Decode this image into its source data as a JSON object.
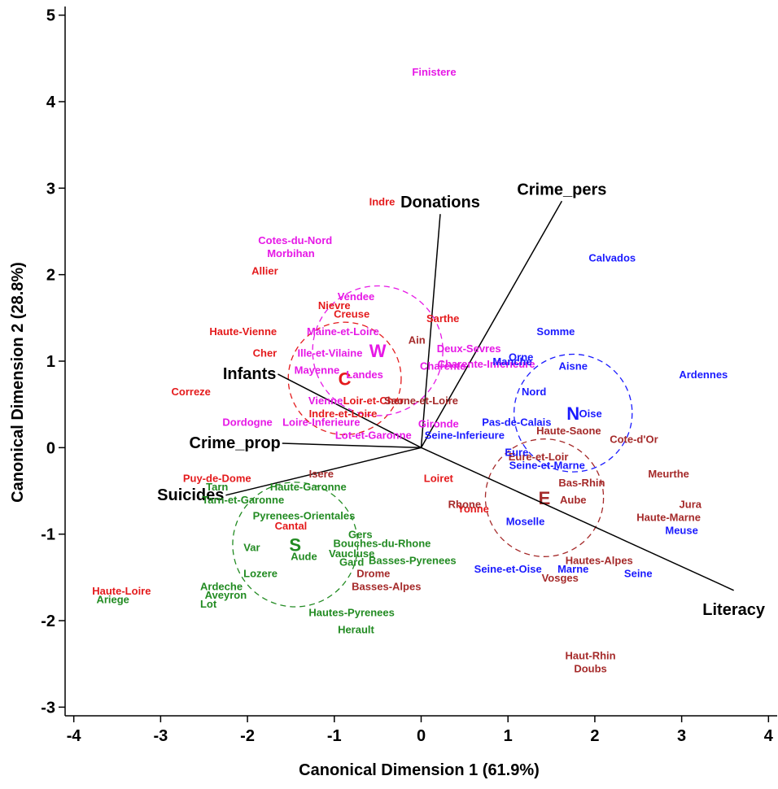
{
  "chart_data": {
    "type": "scatter",
    "title": "",
    "xlabel": "Canonical Dimension 1 (61.9%)",
    "ylabel": "Canonical Dimension 2 (28.8%)",
    "xlim": [
      -4.1,
      4.1
    ],
    "ylim": [
      -3.1,
      5.1
    ],
    "x_ticks": [
      -4,
      -3,
      -2,
      -1,
      0,
      1,
      2,
      3,
      4
    ],
    "y_ticks": [
      -3,
      -2,
      -1,
      0,
      1,
      2,
      3,
      4,
      5
    ],
    "grid": false,
    "legend": "none",
    "region_colors": {
      "C": "#e41a1c",
      "E": "#a52a2a",
      "N": "#1a1aff",
      "S": "#228b22",
      "W": "#e619e6"
    },
    "points": [
      {
        "label": "Finistere",
        "region": "W",
        "x": 0.15,
        "y": 4.35
      },
      {
        "label": "Cotes-du-Nord",
        "region": "W",
        "x": -1.45,
        "y": 2.4
      },
      {
        "label": "Morbihan",
        "region": "W",
        "x": -1.5,
        "y": 2.25
      },
      {
        "label": "Vendee",
        "region": "W",
        "x": -0.75,
        "y": 1.75
      },
      {
        "label": "Maine-et-Loire",
        "region": "W",
        "x": -0.9,
        "y": 1.35
      },
      {
        "label": "Ille-et-Vilaine",
        "region": "W",
        "x": -1.05,
        "y": 1.1
      },
      {
        "label": "Mayenne",
        "region": "W",
        "x": -1.2,
        "y": 0.9
      },
      {
        "label": "Landes",
        "region": "W",
        "x": -0.65,
        "y": 0.85
      },
      {
        "label": "Deux-Sevres",
        "region": "W",
        "x": 0.55,
        "y": 1.15
      },
      {
        "label": "Charente",
        "region": "W",
        "x": 0.25,
        "y": 0.95
      },
      {
        "label": "Charente-Inferieure",
        "region": "W",
        "x": 0.75,
        "y": 0.97
      },
      {
        "label": "Vienne",
        "region": "W",
        "x": -1.1,
        "y": 0.55
      },
      {
        "label": "Loire-Inferieure",
        "region": "W",
        "x": -1.15,
        "y": 0.3
      },
      {
        "label": "Dordogne",
        "region": "W",
        "x": -2.0,
        "y": 0.3
      },
      {
        "label": "Lot-et-Garonne",
        "region": "W",
        "x": -0.55,
        "y": 0.15
      },
      {
        "label": "Gironde",
        "region": "W",
        "x": 0.2,
        "y": 0.28
      },
      {
        "label": "Indre",
        "region": "C",
        "x": -0.45,
        "y": 2.85
      },
      {
        "label": "Allier",
        "region": "C",
        "x": -1.8,
        "y": 2.05
      },
      {
        "label": "Nievre",
        "region": "C",
        "x": -1.0,
        "y": 1.65
      },
      {
        "label": "Creuse",
        "region": "C",
        "x": -0.8,
        "y": 1.55
      },
      {
        "label": "Sarthe",
        "region": "C",
        "x": 0.25,
        "y": 1.5
      },
      {
        "label": "Haute-Vienne",
        "region": "C",
        "x": -2.05,
        "y": 1.35
      },
      {
        "label": "Cher",
        "region": "C",
        "x": -1.8,
        "y": 1.1
      },
      {
        "label": "Correze",
        "region": "C",
        "x": -2.65,
        "y": 0.65
      },
      {
        "label": "Loir-et-Cher",
        "region": "C",
        "x": -0.55,
        "y": 0.55
      },
      {
        "label": "Indre-et-Loire",
        "region": "C",
        "x": -0.9,
        "y": 0.4
      },
      {
        "label": "Loiret",
        "region": "C",
        "x": 0.2,
        "y": -0.35
      },
      {
        "label": "Yonne",
        "region": "C",
        "x": 0.6,
        "y": -0.7
      },
      {
        "label": "Puy-de-Dome",
        "region": "C",
        "x": -2.35,
        "y": -0.35
      },
      {
        "label": "Cantal",
        "region": "C",
        "x": -1.5,
        "y": -0.9
      },
      {
        "label": "Haute-Loire",
        "region": "C",
        "x": -3.45,
        "y": -1.65
      },
      {
        "label": "Saone-et-Loire",
        "region": "E",
        "x": 0.0,
        "y": 0.55
      },
      {
        "label": "Rhone",
        "region": "E",
        "x": 0.5,
        "y": -0.65
      },
      {
        "label": "Isere",
        "region": "E",
        "x": -1.15,
        "y": -0.3
      },
      {
        "label": "Ain",
        "region": "E",
        "x": -0.05,
        "y": 1.25
      },
      {
        "label": "Drome",
        "region": "E",
        "x": -0.55,
        "y": -1.45
      },
      {
        "label": "Basses-Alpes",
        "region": "E",
        "x": -0.4,
        "y": -1.6
      },
      {
        "label": "Haute-Saone",
        "region": "E",
        "x": 1.7,
        "y": 0.2
      },
      {
        "label": "Cote-d'Or",
        "region": "E",
        "x": 2.45,
        "y": 0.1
      },
      {
        "label": "Eure-et-Loir",
        "region": "E",
        "x": 1.35,
        "y": -0.1
      },
      {
        "label": "Bas-Rhin",
        "region": "E",
        "x": 1.85,
        "y": -0.4
      },
      {
        "label": "Aube",
        "region": "E",
        "x": 1.75,
        "y": -0.6
      },
      {
        "label": "Meurthe",
        "region": "E",
        "x": 2.85,
        "y": -0.3
      },
      {
        "label": "Jura",
        "region": "E",
        "x": 3.1,
        "y": -0.65
      },
      {
        "label": "Haute-Marne",
        "region": "E",
        "x": 2.85,
        "y": -0.8
      },
      {
        "label": "Hautes-Alpes",
        "region": "E",
        "x": 2.05,
        "y": -1.3
      },
      {
        "label": "Vosges",
        "region": "E",
        "x": 1.6,
        "y": -1.5
      },
      {
        "label": "Haut-Rhin",
        "region": "E",
        "x": 1.95,
        "y": -2.4
      },
      {
        "label": "Doubs",
        "region": "E",
        "x": 1.95,
        "y": -2.55
      },
      {
        "label": "Calvados",
        "region": "N",
        "x": 2.2,
        "y": 2.2
      },
      {
        "label": "Somme",
        "region": "N",
        "x": 1.55,
        "y": 1.35
      },
      {
        "label": "Orne",
        "region": "N",
        "x": 1.15,
        "y": 1.05
      },
      {
        "label": "Manche",
        "region": "N",
        "x": 1.05,
        "y": 1.0
      },
      {
        "label": "Aisne",
        "region": "N",
        "x": 1.75,
        "y": 0.95
      },
      {
        "label": "Ardennes",
        "region": "N",
        "x": 3.25,
        "y": 0.85
      },
      {
        "label": "Nord",
        "region": "N",
        "x": 1.3,
        "y": 0.65
      },
      {
        "label": "Oise",
        "region": "N",
        "x": 1.95,
        "y": 0.4
      },
      {
        "label": "Pas-de-Calais",
        "region": "N",
        "x": 1.1,
        "y": 0.3
      },
      {
        "label": "Seine-Inferieure",
        "region": "N",
        "x": 0.5,
        "y": 0.15
      },
      {
        "label": "Eure",
        "region": "N",
        "x": 1.1,
        "y": -0.05
      },
      {
        "label": "Seine-et-Marne",
        "region": "N",
        "x": 1.45,
        "y": -0.2
      },
      {
        "label": "Moselle",
        "region": "N",
        "x": 1.2,
        "y": -0.85
      },
      {
        "label": "Meuse",
        "region": "N",
        "x": 3.0,
        "y": -0.95
      },
      {
        "label": "Seine-et-Oise",
        "region": "N",
        "x": 1.0,
        "y": -1.4
      },
      {
        "label": "Marne",
        "region": "N",
        "x": 1.75,
        "y": -1.4
      },
      {
        "label": "Seine",
        "region": "N",
        "x": 2.5,
        "y": -1.45
      },
      {
        "label": "Tarn",
        "region": "S",
        "x": -2.35,
        "y": -0.45
      },
      {
        "label": "Tarn-et-Garonne",
        "region": "S",
        "x": -2.05,
        "y": -0.6
      },
      {
        "label": "Haute-Garonne",
        "region": "S",
        "x": -1.3,
        "y": -0.45
      },
      {
        "label": "Pyrenees-Orientales",
        "region": "S",
        "x": -1.35,
        "y": -0.78
      },
      {
        "label": "Gers",
        "region": "S",
        "x": -0.7,
        "y": -1.0
      },
      {
        "label": "Bouches-du-Rhone",
        "region": "S",
        "x": -0.45,
        "y": -1.1
      },
      {
        "label": "Vaucluse",
        "region": "S",
        "x": -0.8,
        "y": -1.22
      },
      {
        "label": "Basses-Pyrenees",
        "region": "S",
        "x": -0.1,
        "y": -1.3
      },
      {
        "label": "Gard",
        "region": "S",
        "x": -0.8,
        "y": -1.32
      },
      {
        "label": "Var",
        "region": "S",
        "x": -1.95,
        "y": -1.15
      },
      {
        "label": "Aude",
        "region": "S",
        "x": -1.35,
        "y": -1.25
      },
      {
        "label": "Lozere",
        "region": "S",
        "x": -1.85,
        "y": -1.45
      },
      {
        "label": "Ardeche",
        "region": "S",
        "x": -2.3,
        "y": -1.6
      },
      {
        "label": "Aveyron",
        "region": "S",
        "x": -2.25,
        "y": -1.7
      },
      {
        "label": "Lot",
        "region": "S",
        "x": -2.45,
        "y": -1.8
      },
      {
        "label": "Ariege",
        "region": "S",
        "x": -3.55,
        "y": -1.75
      },
      {
        "label": "Hautes-Pyrenees",
        "region": "S",
        "x": -0.8,
        "y": -1.9
      },
      {
        "label": "Herault",
        "region": "S",
        "x": -0.75,
        "y": -2.1
      }
    ],
    "vectors": [
      {
        "label": "Donations",
        "x": 0.22,
        "y": 2.7
      },
      {
        "label": "Crime_pers",
        "x": 1.62,
        "y": 2.85
      },
      {
        "label": "Infants",
        "x": -1.65,
        "y": 0.85
      },
      {
        "label": "Crime_prop",
        "x": -1.6,
        "y": 0.05
      },
      {
        "label": "Suicides",
        "x": -2.25,
        "y": -0.55
      },
      {
        "label": "Literacy",
        "x": 3.6,
        "y": -1.65
      }
    ],
    "groups": [
      {
        "label": "C",
        "x": -0.88,
        "y": 0.8,
        "r": 0.65
      },
      {
        "label": "E",
        "x": 1.42,
        "y": -0.58,
        "r": 0.68
      },
      {
        "label": "N",
        "x": 1.75,
        "y": 0.4,
        "r": 0.68
      },
      {
        "label": "S",
        "x": -1.45,
        "y": -1.12,
        "r": 0.72
      },
      {
        "label": "W",
        "x": -0.5,
        "y": 1.12,
        "r": 0.75
      }
    ]
  }
}
